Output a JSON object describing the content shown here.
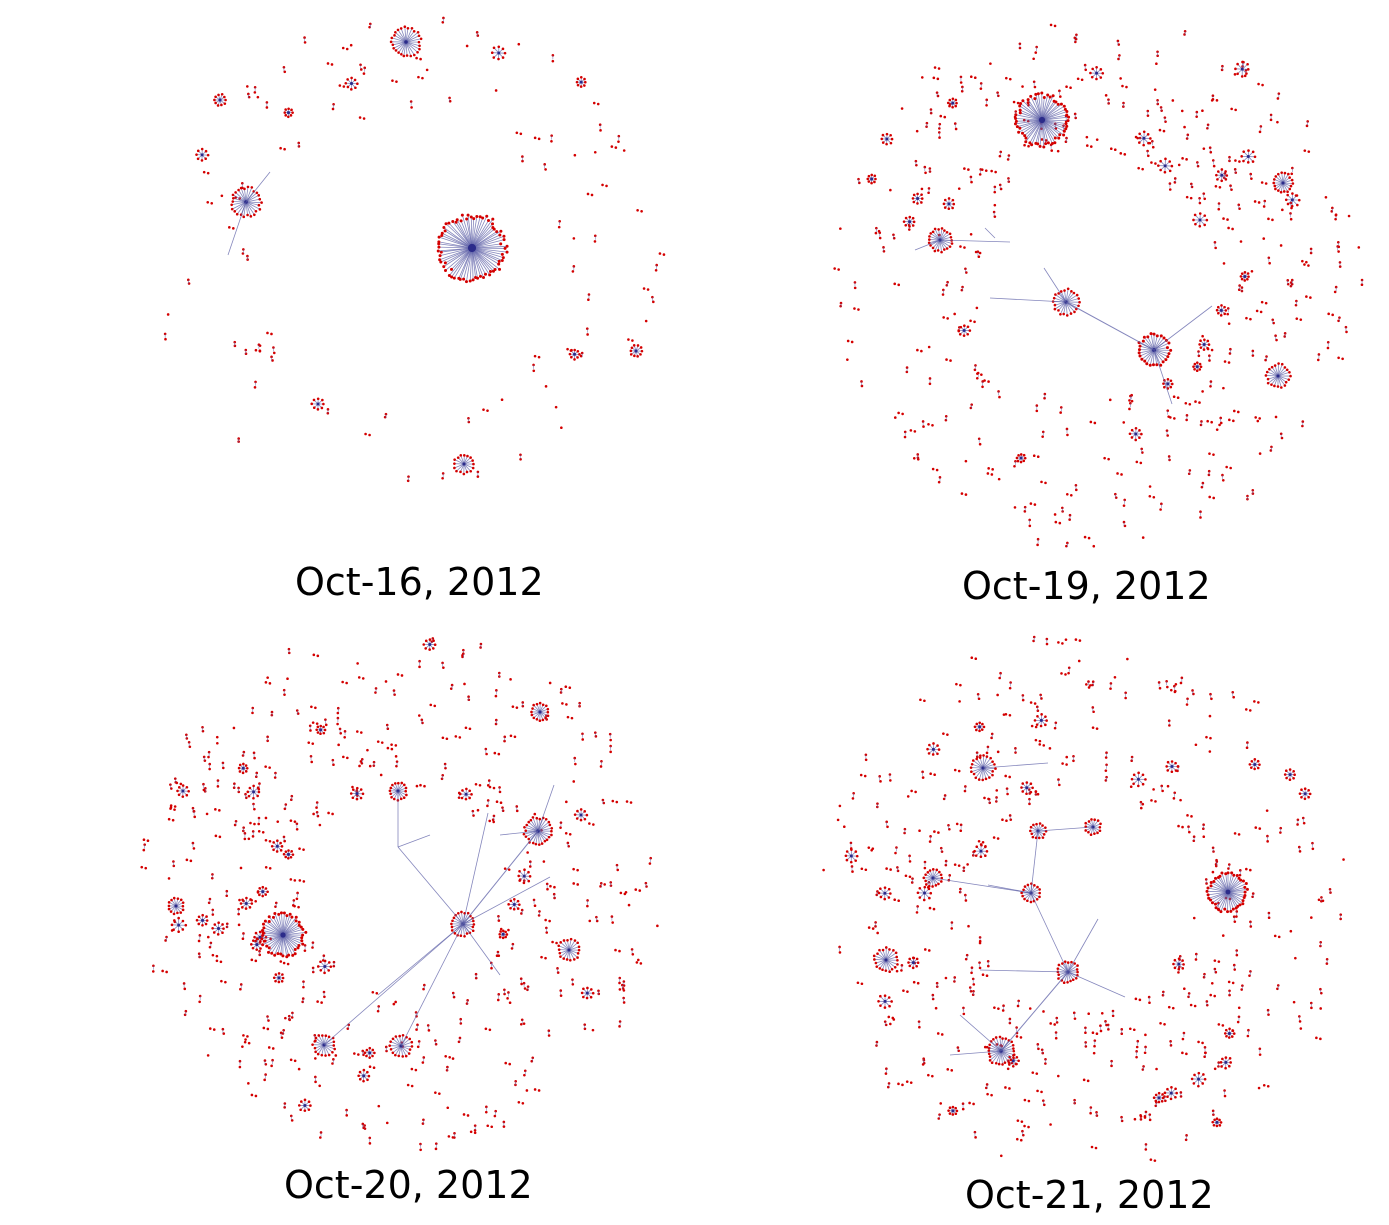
{
  "colors": {
    "node": "#d40000",
    "edge": "#5b5ea6",
    "hub": "#2b2b8a"
  },
  "panels": [
    {
      "caption": "Oct-16, 2012"
    },
    {
      "caption": "Oct-19, 2012"
    },
    {
      "caption": "Oct-20, 2012"
    },
    {
      "caption": "Oct-21, 2012"
    }
  ]
}
